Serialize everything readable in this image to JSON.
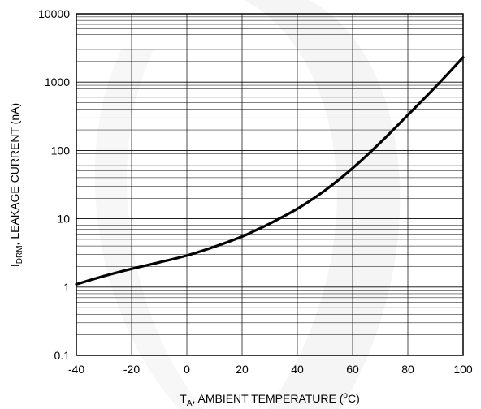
{
  "chart_data": {
    "type": "line",
    "title": "",
    "xlabel": {
      "main": "T",
      "sub": "A",
      "rest": ", AMBIENT TEMPERATURE (",
      "sup": "o",
      "unit": "C)"
    },
    "ylabel": {
      "main": "I",
      "sub": "DRM",
      "rest": ", LEAKAGE CURRENT (nA)"
    },
    "x_scale": "linear",
    "y_scale": "log",
    "xlim": [
      -40,
      100
    ],
    "ylim": [
      0.1,
      10000
    ],
    "x_ticks": [
      -40,
      -20,
      0,
      20,
      40,
      60,
      80,
      100
    ],
    "x_tick_labels": [
      "-40",
      "-20",
      "0",
      "20",
      "40",
      "60",
      "80",
      "100"
    ],
    "y_ticks": [
      0.1,
      1,
      10,
      100,
      1000,
      10000
    ],
    "y_tick_labels": [
      "0.1",
      "1",
      "10",
      "100",
      "1000",
      "10000"
    ],
    "grid": true,
    "legend": "none",
    "line_color": "#000000",
    "grid_color": "#000000",
    "series": [
      {
        "x": [
          -40,
          -30,
          -20,
          -10,
          0,
          10,
          20,
          25,
          30,
          40,
          50,
          60,
          70,
          80,
          90,
          100
        ],
        "values": [
          1.1,
          1.45,
          1.85,
          2.3,
          2.9,
          3.9,
          5.5,
          6.8,
          8.5,
          14,
          26,
          55,
          130,
          330,
          850,
          2300
        ]
      }
    ]
  }
}
